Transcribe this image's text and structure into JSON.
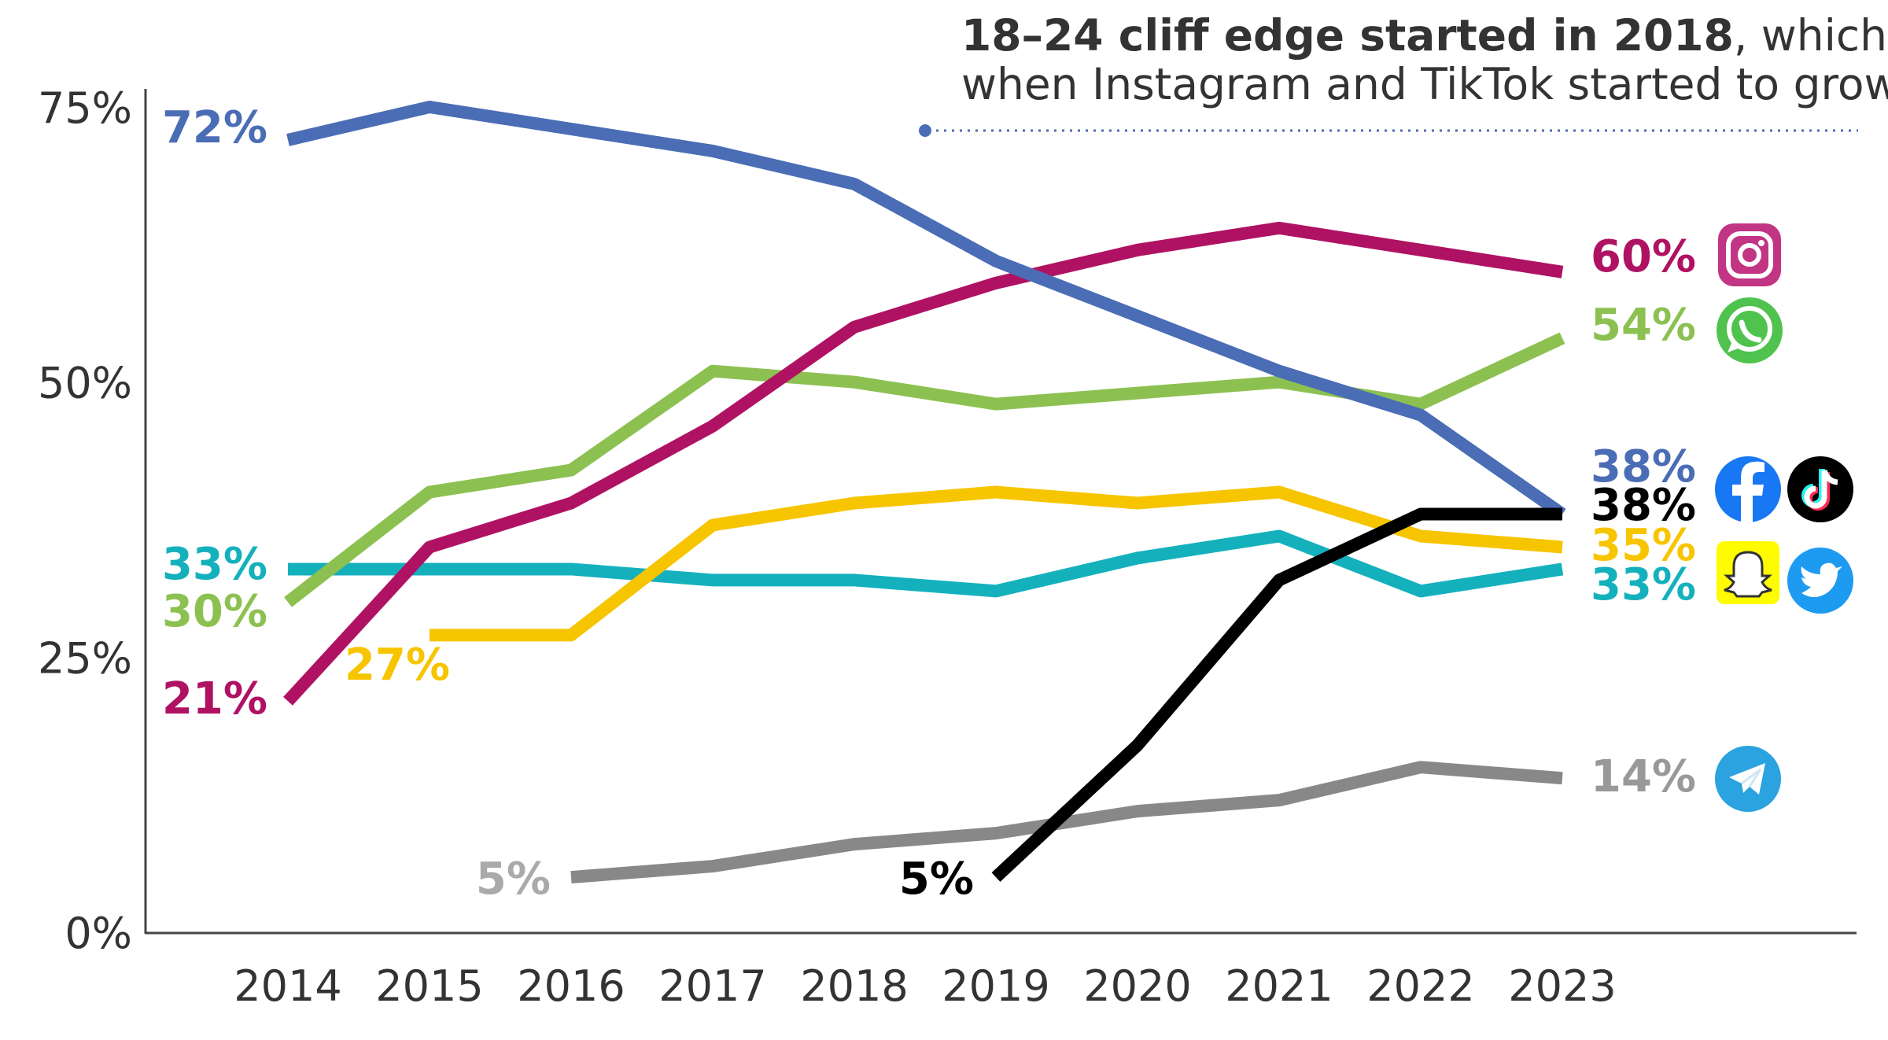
{
  "chart_data": {
    "type": "line",
    "title": "",
    "xlabel": "",
    "ylabel": "",
    "ylim": [
      0,
      75
    ],
    "x": [
      2014,
      2015,
      2016,
      2017,
      2018,
      2019,
      2020,
      2021,
      2022,
      2023
    ],
    "x_tick_labels": [
      "2014",
      "2015",
      "2016",
      "2017",
      "2018",
      "2019",
      "2020",
      "2021",
      "2022",
      "2023"
    ],
    "y_tick_labels": [
      {
        "value": 0,
        "label": "0%"
      },
      {
        "value": 25,
        "label": "25%"
      },
      {
        "value": 50,
        "label": "50%"
      },
      {
        "value": 75,
        "label": "75%"
      }
    ],
    "grid": false,
    "annotation": {
      "bold": "18–24 cliff edge started in 2018",
      "rest_line1": ", which is",
      "line2": "when Instagram and TikTok started to grow",
      "x": 2018.5
    },
    "series": [
      {
        "key": "facebook",
        "color": "#4a6db5",
        "values": [
          72,
          75,
          73,
          71,
          68,
          61,
          56,
          51,
          47,
          38
        ],
        "start_label": "72%",
        "end_label": "38%",
        "icon": "facebook-icon"
      },
      {
        "key": "instagram",
        "color": "#b01263",
        "values": [
          21,
          35,
          39,
          46,
          55,
          59,
          62,
          64,
          62,
          60
        ],
        "start_label": "21%",
        "end_label": "60%",
        "icon": "instagram-icon"
      },
      {
        "key": "whatsapp",
        "color": "#8cc152",
        "values": [
          30,
          40,
          42,
          51,
          50,
          48,
          49,
          50,
          48,
          54
        ],
        "start_label": "30%",
        "end_label": "54%",
        "icon": "whatsapp-icon"
      },
      {
        "key": "snapchat",
        "color": "#f7c500",
        "values": [
          null,
          27,
          27,
          37,
          39,
          40,
          39,
          40,
          36,
          35
        ],
        "start_label": "27%",
        "end_label": "35%",
        "icon": "snapchat-icon"
      },
      {
        "key": "twitter",
        "color": "#14b1bd",
        "values": [
          33,
          33,
          33,
          32,
          32,
          31,
          34,
          36,
          31,
          33
        ],
        "start_label": "33%",
        "end_label": "33%",
        "icon": "twitter-icon"
      },
      {
        "key": "tiktok",
        "color": "#000000",
        "values": [
          null,
          null,
          null,
          null,
          null,
          5,
          17,
          32,
          38,
          38
        ],
        "start_label": "5%",
        "end_label": "38%",
        "icon": "tiktok-icon"
      },
      {
        "key": "telegram",
        "color": "#888888",
        "values": [
          null,
          null,
          5,
          6,
          8,
          9,
          11,
          12,
          15,
          14
        ],
        "start_label": "5%",
        "end_label": "14%",
        "icon": "telegram-icon"
      }
    ]
  }
}
